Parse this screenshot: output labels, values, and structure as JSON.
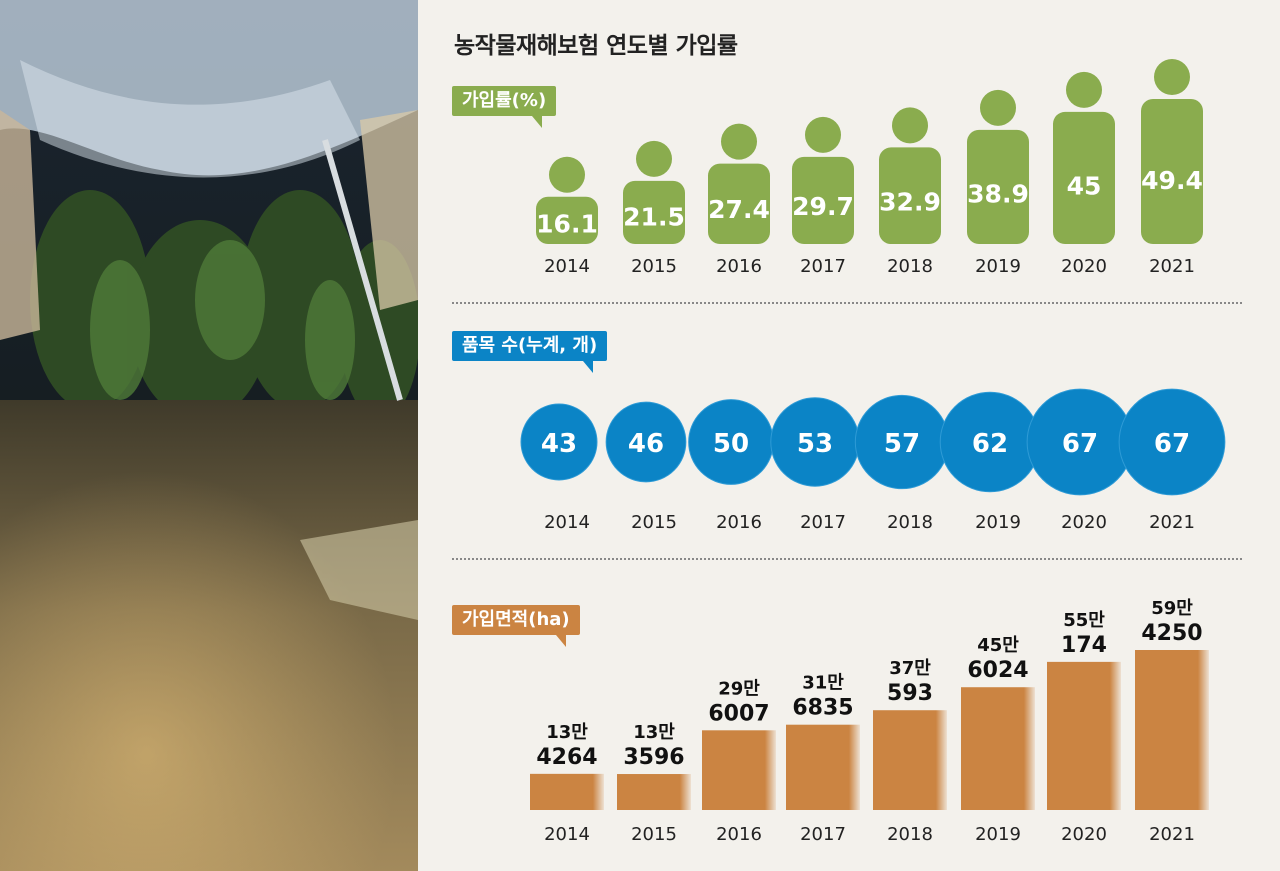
{
  "title": "농작물재해보험 연도별 가입률",
  "colors": {
    "green": "#8aac4e",
    "blue": "#0b84c6",
    "orange": "#cb8442",
    "bg": "#f3f1ec"
  },
  "photo": {
    "description_icon": "flooded-greenhouse-image"
  },
  "charts": [
    {
      "label": "가입률(%)"
    },
    {
      "label": "품목 수(누계, 개)"
    },
    {
      "label": "가입면적(ha)"
    }
  ],
  "chart_data": [
    {
      "type": "bar",
      "title": "가입률(%)",
      "categories": [
        "2014",
        "2015",
        "2016",
        "2017",
        "2018",
        "2019",
        "2020",
        "2021"
      ],
      "values": [
        16.1,
        21.5,
        27.4,
        29.7,
        32.9,
        38.9,
        45,
        49.4
      ],
      "labels": [
        "16.1",
        "21.5",
        "27.4",
        "29.7",
        "32.9",
        "38.9",
        "45",
        "49.4"
      ]
    },
    {
      "type": "scatter",
      "title": "품목 수(누계, 개)",
      "categories": [
        "2014",
        "2015",
        "2016",
        "2017",
        "2018",
        "2019",
        "2020",
        "2021"
      ],
      "values": [
        43,
        46,
        50,
        53,
        57,
        62,
        67,
        67
      ],
      "labels": [
        "43",
        "46",
        "50",
        "53",
        "57",
        "62",
        "67",
        "67"
      ]
    },
    {
      "type": "bar",
      "title": "가입면적(ha)",
      "categories": [
        "2014",
        "2015",
        "2016",
        "2017",
        "2018",
        "2019",
        "2020",
        "2021"
      ],
      "values": [
        134264,
        133596,
        296007,
        316835,
        370593,
        456024,
        550174,
        594250
      ],
      "label_top": [
        "13만",
        "13만",
        "29만",
        "31만",
        "37만",
        "45만",
        "55만",
        "59만"
      ],
      "label_bottom": [
        "4264",
        "3596",
        "6007",
        "6835",
        "593",
        "6024",
        "174",
        "4250"
      ]
    }
  ]
}
